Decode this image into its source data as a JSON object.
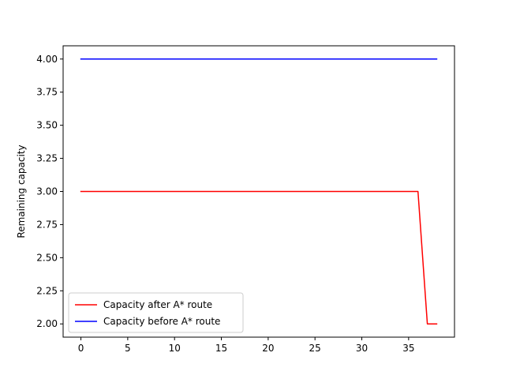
{
  "chart_data": {
    "type": "line",
    "title": "",
    "xlabel": "",
    "ylabel": "Remaining capacity",
    "xlim": [
      -1.9,
      39.9
    ],
    "ylim": [
      1.9,
      4.1
    ],
    "xticks": [
      0,
      5,
      10,
      15,
      20,
      25,
      30,
      35
    ],
    "xtick_labels": [
      "0",
      "5",
      "10",
      "15",
      "20",
      "25",
      "30",
      "35"
    ],
    "yticks": [
      2.0,
      2.25,
      2.5,
      2.75,
      3.0,
      3.25,
      3.5,
      3.75,
      4.0
    ],
    "ytick_labels": [
      "2.00",
      "2.25",
      "2.50",
      "2.75",
      "3.00",
      "3.25",
      "3.50",
      "3.75",
      "4.00"
    ],
    "grid": false,
    "legend_position": "lower-left",
    "series": [
      {
        "name": "Capacity after A* route",
        "color": "#ff0000",
        "x": [
          0,
          1,
          2,
          3,
          4,
          5,
          6,
          7,
          8,
          9,
          10,
          11,
          12,
          13,
          14,
          15,
          16,
          17,
          18,
          19,
          20,
          21,
          22,
          23,
          24,
          25,
          26,
          27,
          28,
          29,
          30,
          31,
          32,
          33,
          34,
          35,
          36,
          37,
          38
        ],
        "y": [
          3,
          3,
          3,
          3,
          3,
          3,
          3,
          3,
          3,
          3,
          3,
          3,
          3,
          3,
          3,
          3,
          3,
          3,
          3,
          3,
          3,
          3,
          3,
          3,
          3,
          3,
          3,
          3,
          3,
          3,
          3,
          3,
          3,
          3,
          3,
          3,
          3,
          2,
          2
        ]
      },
      {
        "name": "Capacity before A* route",
        "color": "#0000ff",
        "x": [
          0,
          1,
          2,
          3,
          4,
          5,
          6,
          7,
          8,
          9,
          10,
          11,
          12,
          13,
          14,
          15,
          16,
          17,
          18,
          19,
          20,
          21,
          22,
          23,
          24,
          25,
          26,
          27,
          28,
          29,
          30,
          31,
          32,
          33,
          34,
          35,
          36,
          37,
          38
        ],
        "y": [
          4,
          4,
          4,
          4,
          4,
          4,
          4,
          4,
          4,
          4,
          4,
          4,
          4,
          4,
          4,
          4,
          4,
          4,
          4,
          4,
          4,
          4,
          4,
          4,
          4,
          4,
          4,
          4,
          4,
          4,
          4,
          4,
          4,
          4,
          4,
          4,
          4,
          4,
          4
        ]
      }
    ]
  }
}
